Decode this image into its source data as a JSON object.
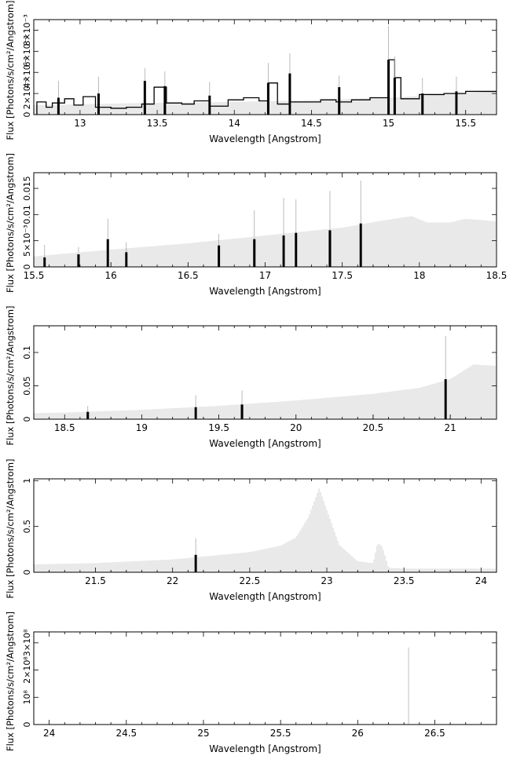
{
  "colors": {
    "model": "#c8c8c8",
    "data": "#000000",
    "axis": "#000000",
    "background": "#ffffff"
  },
  "chart_data": [
    {
      "type": "line",
      "xlabel": "Wavelength [Angstrom]",
      "ylabel": "Flux [Photons/s/cm²/Angstrom]",
      "xlim": [
        12.7,
        15.7
      ],
      "ylim": [
        0,
        0.009
      ],
      "xticks": [
        {
          "v": 13,
          "label": "13"
        },
        {
          "v": 13.5,
          "label": "13.5"
        },
        {
          "v": 14,
          "label": "14"
        },
        {
          "v": 14.5,
          "label": "14.5"
        },
        {
          "v": 15,
          "label": "15"
        },
        {
          "v": 15.5,
          "label": "15.5"
        }
      ],
      "yticks": [
        {
          "v": 0,
          "label": "0"
        },
        {
          "v": 0.002,
          "label": "2×10⁻³"
        },
        {
          "v": 0.004,
          "label": "4×10⁻³"
        },
        {
          "v": 0.006,
          "label": "6×10⁻³"
        },
        {
          "v": 0.008,
          "label": "8×10⁻³"
        }
      ],
      "model": {
        "x": [
          12.7,
          13.4,
          14.0,
          14.6,
          15.0,
          15.7
        ],
        "y": [
          0.0009,
          0.0011,
          0.0012,
          0.0014,
          0.0016,
          0.0022
        ]
      },
      "data_steps": [
        [
          12.72,
          0.0012
        ],
        [
          12.78,
          0.0007
        ],
        [
          12.82,
          0.0011
        ],
        [
          12.9,
          0.0015
        ],
        [
          12.96,
          0.0009
        ],
        [
          13.02,
          0.0017
        ],
        [
          13.1,
          0.0007
        ],
        [
          13.2,
          0.0006
        ],
        [
          13.3,
          0.0007
        ],
        [
          13.4,
          0.001
        ],
        [
          13.48,
          0.0026
        ],
        [
          13.56,
          0.0011
        ],
        [
          13.66,
          0.001
        ],
        [
          13.74,
          0.0013
        ],
        [
          13.84,
          0.0008
        ],
        [
          13.96,
          0.0014
        ],
        [
          14.06,
          0.0016
        ],
        [
          14.16,
          0.0013
        ],
        [
          14.22,
          0.003
        ],
        [
          14.28,
          0.001
        ],
        [
          14.36,
          0.0012
        ],
        [
          14.44,
          0.0012
        ],
        [
          14.56,
          0.0014
        ],
        [
          14.66,
          0.0012
        ],
        [
          14.76,
          0.0014
        ],
        [
          14.88,
          0.0016
        ],
        [
          14.96,
          0.0016
        ],
        [
          15.0,
          0.0052
        ],
        [
          15.04,
          0.0035
        ],
        [
          15.08,
          0.0015
        ],
        [
          15.2,
          0.0019
        ],
        [
          15.36,
          0.002
        ],
        [
          15.5,
          0.0022
        ],
        [
          15.7,
          0.0022
        ]
      ],
      "errorbars": [
        {
          "x": 12.86,
          "y": 0.0016,
          "hi": 0.0032
        },
        {
          "x": 13.12,
          "y": 0.002,
          "hi": 0.0036
        },
        {
          "x": 13.42,
          "y": 0.0032,
          "hi": 0.0044
        },
        {
          "x": 13.55,
          "y": 0.0027,
          "hi": 0.0041
        },
        {
          "x": 13.84,
          "y": 0.0018,
          "hi": 0.0031
        },
        {
          "x": 14.22,
          "y": 0.003,
          "hi": 0.0049
        },
        {
          "x": 14.36,
          "y": 0.0039,
          "hi": 0.0058
        },
        {
          "x": 14.68,
          "y": 0.0026,
          "hi": 0.0037
        },
        {
          "x": 15.0,
          "y": 0.0052,
          "hi": 0.0084
        },
        {
          "x": 15.04,
          "y": 0.0035,
          "hi": 0.0055
        },
        {
          "x": 15.22,
          "y": 0.002,
          "hi": 0.0035
        },
        {
          "x": 15.44,
          "y": 0.0022,
          "hi": 0.0036
        }
      ]
    },
    {
      "type": "line",
      "xlabel": "Wavelength [Angstrom]",
      "ylabel": "Flux [Photons/s/cm²/Angstrom]",
      "xlim": [
        15.5,
        18.5
      ],
      "ylim": [
        0,
        0.018
      ],
      "xticks": [
        {
          "v": 15.5,
          "label": "15.5"
        },
        {
          "v": 16,
          "label": "16"
        },
        {
          "v": 16.5,
          "label": "16.5"
        },
        {
          "v": 17,
          "label": "17"
        },
        {
          "v": 17.5,
          "label": "17.5"
        },
        {
          "v": 18,
          "label": "18"
        },
        {
          "v": 18.5,
          "label": "18.5"
        }
      ],
      "yticks": [
        {
          "v": 0,
          "label": "0"
        },
        {
          "v": 0.005,
          "label": "5×10⁻³"
        },
        {
          "v": 0.01,
          "label": "0.01"
        },
        {
          "v": 0.015,
          "label": "0.015"
        }
      ],
      "model": {
        "x": [
          15.5,
          16.0,
          16.5,
          17.0,
          17.5,
          17.75,
          17.95,
          18.05,
          18.2,
          18.3,
          18.5
        ],
        "y": [
          0.002,
          0.0033,
          0.0045,
          0.006,
          0.0075,
          0.0088,
          0.0097,
          0.0085,
          0.0085,
          0.0092,
          0.0087
        ]
      },
      "data_steps": [],
      "errorbars": [
        {
          "x": 15.57,
          "y": 0.0018,
          "hi": 0.0042
        },
        {
          "x": 15.79,
          "y": 0.0024,
          "hi": 0.0038
        },
        {
          "x": 15.98,
          "y": 0.0053,
          "hi": 0.0092
        },
        {
          "x": 16.1,
          "y": 0.0028,
          "hi": 0.0047
        },
        {
          "x": 16.7,
          "y": 0.0041,
          "hi": 0.0063
        },
        {
          "x": 16.93,
          "y": 0.0053,
          "hi": 0.0108
        },
        {
          "x": 17.12,
          "y": 0.006,
          "hi": 0.0132
        },
        {
          "x": 17.2,
          "y": 0.0065,
          "hi": 0.0129
        },
        {
          "x": 17.42,
          "y": 0.007,
          "hi": 0.0145
        },
        {
          "x": 17.62,
          "y": 0.0083,
          "hi": 0.0165
        }
      ]
    },
    {
      "type": "line",
      "xlabel": "Wavelength [Angstrom]",
      "ylabel": "Flux [Photons/s/cm²/Angstrom]",
      "xlim": [
        18.3,
        21.3
      ],
      "ylim": [
        0,
        0.14
      ],
      "xticks": [
        {
          "v": 18.5,
          "label": "18.5"
        },
        {
          "v": 19,
          "label": "19"
        },
        {
          "v": 19.5,
          "label": "19.5"
        },
        {
          "v": 20,
          "label": "20"
        },
        {
          "v": 20.5,
          "label": "20.5"
        },
        {
          "v": 21,
          "label": "21"
        }
      ],
      "yticks": [
        {
          "v": 0,
          "label": "0"
        },
        {
          "v": 0.05,
          "label": "0.05"
        },
        {
          "v": 0.1,
          "label": "0.1"
        }
      ],
      "model": {
        "x": [
          18.3,
          18.5,
          19.0,
          19.5,
          20.0,
          20.5,
          20.8,
          21.0,
          21.15,
          21.3
        ],
        "y": [
          0.009,
          0.01,
          0.014,
          0.02,
          0.028,
          0.038,
          0.047,
          0.06,
          0.082,
          0.08
        ]
      },
      "data_steps": [],
      "errorbars": [
        {
          "x": 18.65,
          "y": 0.011,
          "hi": 0.02
        },
        {
          "x": 19.35,
          "y": 0.018,
          "hi": 0.036
        },
        {
          "x": 19.65,
          "y": 0.022,
          "hi": 0.043
        },
        {
          "x": 20.97,
          "y": 0.06,
          "hi": 0.125
        }
      ]
    },
    {
      "type": "line",
      "xlabel": "Wavelength [Angstrom]",
      "ylabel": "Flux [Photons/s/cm²/Angstrom]",
      "xlim": [
        21.1,
        24.1
      ],
      "ylim": [
        0,
        1.02
      ],
      "xticks": [
        {
          "v": 21.5,
          "label": "21.5"
        },
        {
          "v": 22,
          "label": "22"
        },
        {
          "v": 22.5,
          "label": "22.5"
        },
        {
          "v": 23,
          "label": "23"
        },
        {
          "v": 23.5,
          "label": "23.5"
        },
        {
          "v": 24,
          "label": "24"
        }
      ],
      "yticks": [
        {
          "v": 0,
          "label": "0"
        },
        {
          "v": 0.5,
          "label": "0.5"
        },
        {
          "v": 1,
          "label": "1"
        }
      ],
      "model": {
        "x": [
          21.1,
          21.5,
          22.0,
          22.5,
          22.7,
          22.8,
          22.88,
          22.95,
          23.0,
          23.08,
          23.2,
          23.3,
          23.33,
          23.36,
          23.4,
          23.5,
          24.1
        ],
        "y": [
          0.085,
          0.1,
          0.14,
          0.22,
          0.29,
          0.38,
          0.6,
          0.92,
          0.68,
          0.3,
          0.12,
          0.1,
          0.32,
          0.28,
          0.05,
          0.04,
          0.04
        ]
      },
      "data_steps": [],
      "errorbars": [
        {
          "x": 22.15,
          "y": 0.19,
          "hi": 0.37
        }
      ]
    },
    {
      "type": "line",
      "xlabel": "Wavelength [Angstrom]",
      "ylabel": "Flux [Photons/s/cm²/Angstrom]",
      "xlim": [
        23.9,
        26.9
      ],
      "ylim": [
        0,
        340000000
      ],
      "xticks": [
        {
          "v": 24,
          "label": "24"
        },
        {
          "v": 24.5,
          "label": "24.5"
        },
        {
          "v": 25,
          "label": "25"
        },
        {
          "v": 25.5,
          "label": "25.5"
        },
        {
          "v": 26,
          "label": "26"
        },
        {
          "v": 26.5,
          "label": "26.5"
        }
      ],
      "yticks": [
        {
          "v": 0,
          "label": "0"
        },
        {
          "v": 100000000,
          "label": "10⁸"
        },
        {
          "v": 200000000,
          "label": "2×10⁸"
        },
        {
          "v": 300000000,
          "label": "3×10⁸"
        }
      ],
      "model": {
        "x": [
          23.9,
          26.9
        ],
        "y": [
          0,
          0
        ]
      },
      "data_steps": [],
      "errorbars": [],
      "spikes": [
        {
          "x": 26.33,
          "y": 283000000
        }
      ]
    }
  ]
}
